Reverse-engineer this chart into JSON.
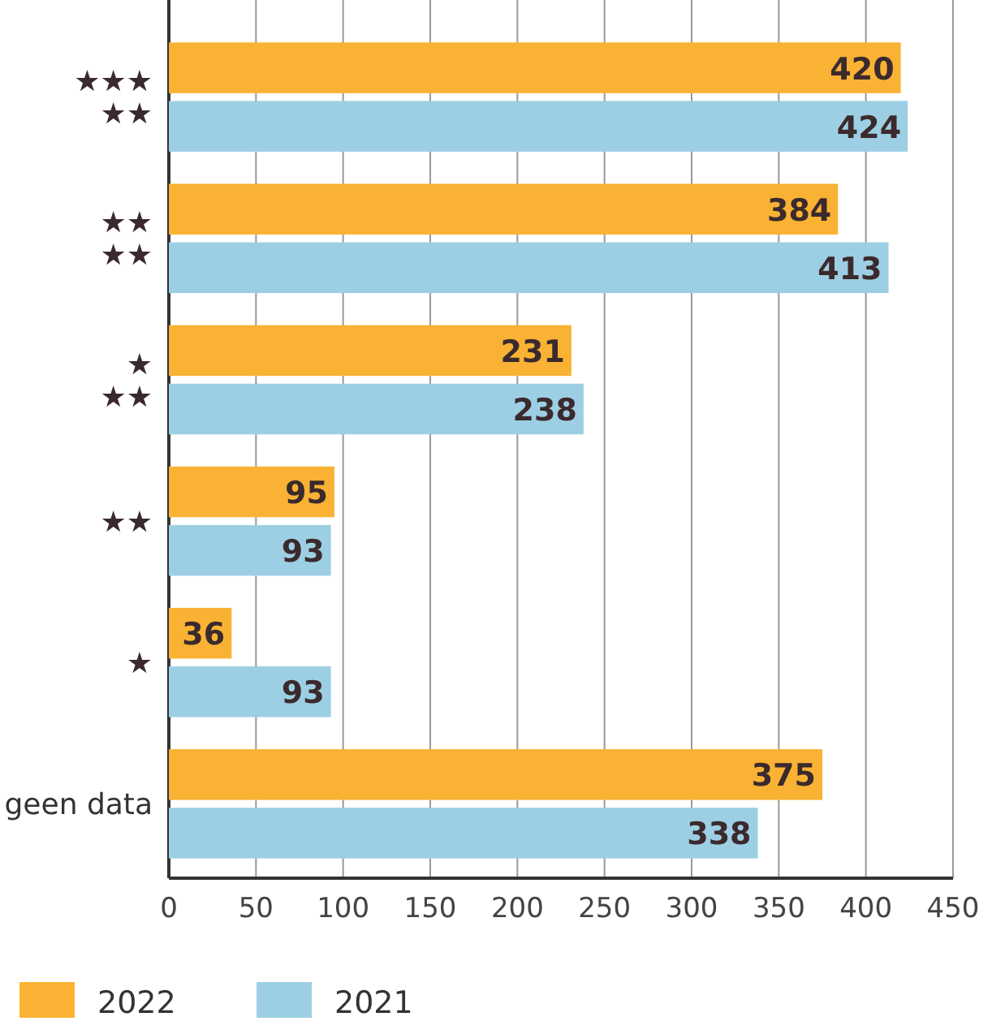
{
  "chart_data": {
    "type": "bar",
    "orientation": "horizontal",
    "categories": [
      "★★★★★",
      "★★★★",
      "★★★",
      "★★",
      "★",
      "geen data"
    ],
    "series": [
      {
        "name": "2022",
        "color": "#f9b233",
        "values": [
          420,
          384,
          231,
          95,
          36,
          375
        ]
      },
      {
        "name": "2021",
        "color": "#9dcfe4",
        "values": [
          424,
          413,
          238,
          93,
          93,
          338
        ]
      }
    ],
    "xlim": [
      0,
      450
    ],
    "xticks": [
      0,
      50,
      100,
      150,
      200,
      250,
      300,
      350,
      400,
      450
    ],
    "grid": "x",
    "data_labels": true,
    "legend": "bottom left"
  }
}
